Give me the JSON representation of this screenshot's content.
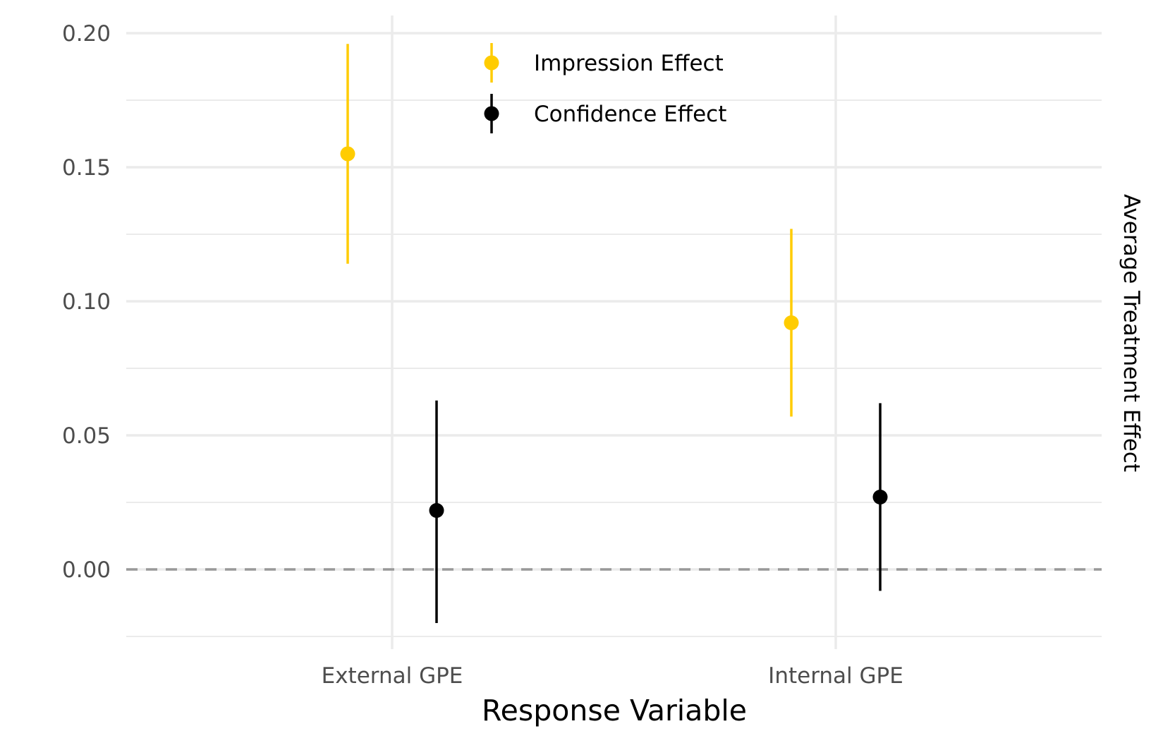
{
  "chart_data": {
    "type": "scatter",
    "subtype": "point-range",
    "title": "",
    "xlabel": "Response Variable",
    "ylabel": "Average Treatment Effect",
    "ylabel_position": "right",
    "categories": [
      "External GPE",
      "Internal GPE"
    ],
    "ylim": [
      -0.025,
      0.2
    ],
    "y_ticks": [
      0.0,
      0.05,
      0.1,
      0.15,
      0.2
    ],
    "y_tick_labels": [
      "0.00",
      "0.05",
      "0.10",
      "0.15",
      "0.20"
    ],
    "grid": true,
    "reference_line": {
      "y": 0,
      "style": "dashed",
      "color": "#999999"
    },
    "legend": {
      "placement": "top-center"
    },
    "series": [
      {
        "name": "Impression Effect",
        "color": "#FFCC00",
        "dodge": -1,
        "points": [
          {
            "category": "External GPE",
            "estimate": 0.155,
            "lower": 0.114,
            "upper": 0.196
          },
          {
            "category": "Internal GPE",
            "estimate": 0.092,
            "lower": 0.057,
            "upper": 0.127
          }
        ]
      },
      {
        "name": "Confidence Effect",
        "color": "#000000",
        "dodge": 1,
        "points": [
          {
            "category": "External GPE",
            "estimate": 0.022,
            "lower": -0.02,
            "upper": 0.063
          },
          {
            "category": "Internal GPE",
            "estimate": 0.027,
            "lower": -0.008,
            "upper": 0.062
          }
        ]
      }
    ]
  }
}
